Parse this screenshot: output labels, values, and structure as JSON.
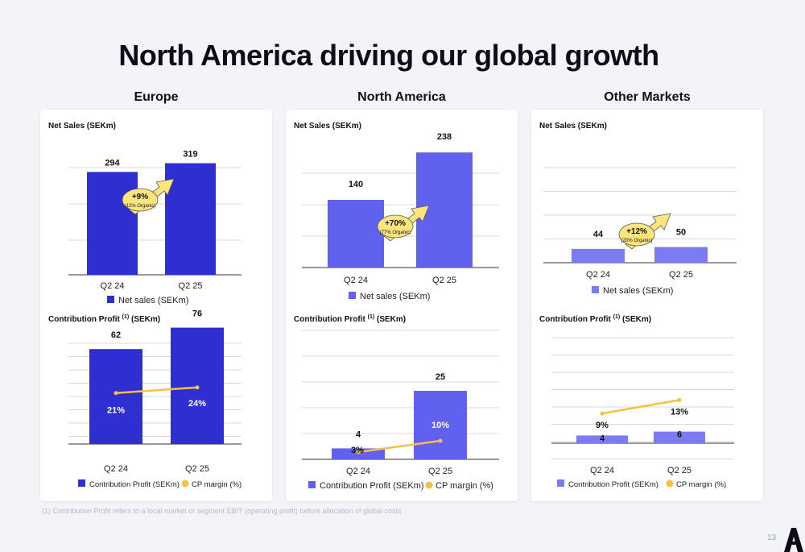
{
  "title": "North America driving our global growth",
  "footnote": "(1) Contribution Profit refers to a local market or segment EBIT (operating profit) before allocation of global costs",
  "page_number": "13",
  "colors": {
    "europe_bar": "#2f2ed0",
    "na_bar": "#6161f0",
    "other_bar": "#7b7cf2",
    "cp_line": "#f6c143",
    "growth_arrow": "#fbe67e"
  },
  "regions": [
    {
      "name": "Europe",
      "sales_heading": "Net Sales (SEKm)",
      "cp_heading": "Contribution Profit",
      "cp_sup": "(1)",
      "cp_unit": "(SEKm)",
      "growth_label": "+9%",
      "growth_sub": "(12% Organic)",
      "legend_sales": "Net sales (SEKm)",
      "legend_cp": "Contribution Profit (SEKm)",
      "legend_margin": "CP margin (%)"
    },
    {
      "name": "North America",
      "sales_heading": "Net Sales (SEKm)",
      "cp_heading": "Contribution Profit",
      "cp_sup": "(1)",
      "cp_unit": "(SEKm)",
      "growth_label": "+70%",
      "growth_sub": "(77% Organic)",
      "legend_sales": "Net sales (SEKm)",
      "legend_cp": "Contribution Profit (SEKm)",
      "legend_margin": "CP margin (%)"
    },
    {
      "name": "Other Markets",
      "sales_heading": "Net Sales (SEKm)",
      "cp_heading": "Contribution Profit",
      "cp_sup": "(1)",
      "cp_unit": "(SEKm)",
      "growth_label": "+12%",
      "growth_sub": "(20% Organic)",
      "legend_sales": "Net sales (SEKm)",
      "legend_cp": "Contribution Profit (SEKm)",
      "legend_margin": "CP margin (%)"
    }
  ],
  "chart_data": [
    {
      "type": "bar",
      "region": "Europe",
      "title": "Net Sales (SEKm)",
      "categories": [
        "Q2 24",
        "Q2 25"
      ],
      "series": [
        {
          "name": "Net sales (SEKm)",
          "values": [
            294,
            319
          ]
        }
      ],
      "data_labels": [
        "294",
        "319"
      ],
      "legend": "bottom"
    },
    {
      "type": "bar",
      "region": "Europe",
      "title": "Contribution Profit (1) (SEKm)",
      "categories": [
        "Q2 24",
        "Q2 25"
      ],
      "series": [
        {
          "name": "Contribution Profit (SEKm)",
          "values": [
            62,
            76
          ]
        },
        {
          "name": "CP margin (%)",
          "type": "line",
          "values": [
            21,
            24
          ]
        }
      ],
      "data_labels": [
        "62",
        "76"
      ],
      "margin_labels": [
        "21%",
        "24%"
      ],
      "legend": "bottom"
    },
    {
      "type": "bar",
      "region": "North America",
      "title": "Net Sales (SEKm)",
      "categories": [
        "Q2 24",
        "Q2 25"
      ],
      "series": [
        {
          "name": "Net sales (SEKm)",
          "values": [
            140,
            238
          ]
        }
      ],
      "data_labels": [
        "140",
        "238"
      ],
      "legend": "bottom"
    },
    {
      "type": "bar",
      "region": "North America",
      "title": "Contribution Profit (1) (SEKm)",
      "categories": [
        "Q2 24",
        "Q2 25"
      ],
      "series": [
        {
          "name": "Contribution Profit (SEKm)",
          "values": [
            4,
            25
          ]
        },
        {
          "name": "CP margin (%)",
          "type": "line",
          "values": [
            3,
            10
          ]
        }
      ],
      "data_labels": [
        "4",
        "25"
      ],
      "margin_labels": [
        "3%",
        "10%"
      ],
      "legend": "bottom"
    },
    {
      "type": "bar",
      "region": "Other Markets",
      "title": "Net Sales (SEKm)",
      "categories": [
        "Q2 24",
        "Q2 25"
      ],
      "series": [
        {
          "name": "Net sales (SEKm)",
          "values": [
            44,
            50
          ]
        }
      ],
      "data_labels": [
        "44",
        "50"
      ],
      "legend": "bottom"
    },
    {
      "type": "bar",
      "region": "Other Markets",
      "title": "Contribution Profit (1) (SEKm)",
      "categories": [
        "Q2 24",
        "Q2 25"
      ],
      "series": [
        {
          "name": "Contribution Profit (SEKm)",
          "values": [
            4,
            6
          ]
        },
        {
          "name": "CP margin (%)",
          "type": "line",
          "values": [
            9,
            13
          ]
        }
      ],
      "data_labels": [
        "4",
        "6"
      ],
      "margin_labels": [
        "9%",
        "13%"
      ],
      "legend": "bottom"
    }
  ]
}
